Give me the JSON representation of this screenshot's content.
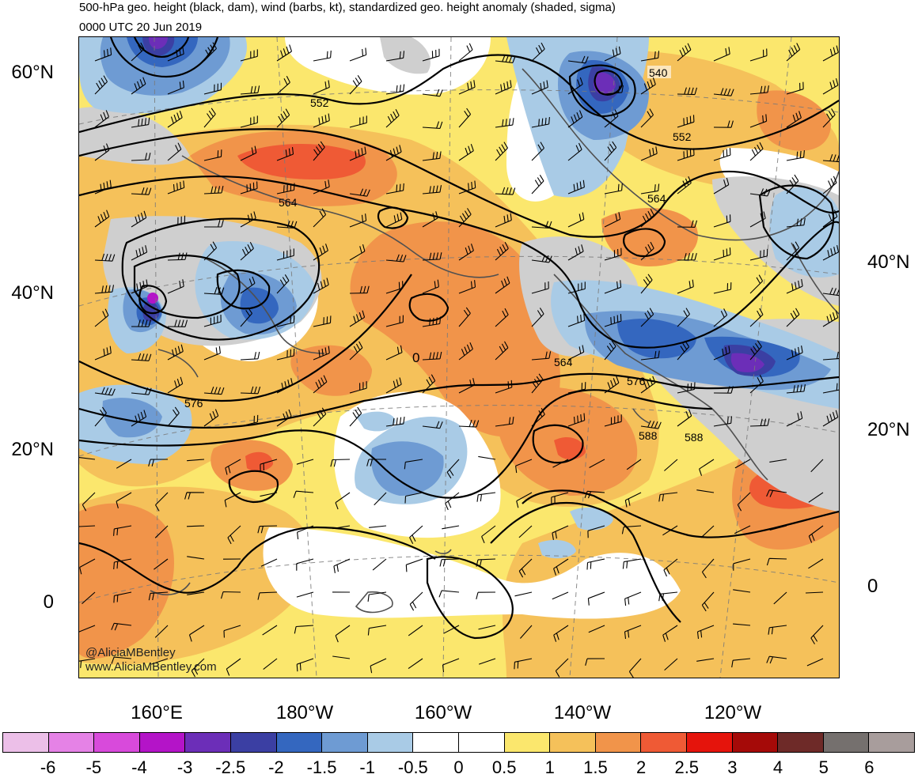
{
  "title": "500-hPa geo. height (black, dam), wind (barbs, kt), standardized geo. height anomaly (shaded, sigma)",
  "subtitle": "0000 UTC 20 Jun 2019",
  "credits": [
    "@AliciaMBentley",
    "www.AliciaMBentley.com"
  ],
  "lat_labels_left": [
    "60°N",
    "40°N",
    "20°N",
    "0"
  ],
  "lat_labels_right": [
    "40°N",
    "20°N",
    "0"
  ],
  "lon_labels": [
    "160°E",
    "180°W",
    "160°W",
    "140°W",
    "120°W"
  ],
  "contour_labels": [
    "540",
    "552",
    "552",
    "564",
    "564",
    "564",
    "576",
    "576",
    "588",
    "588",
    "0"
  ],
  "colorbar": {
    "labels": [
      "-6",
      "-5",
      "-4",
      "-3",
      "-2.5",
      "-2",
      "-1.5",
      "-1",
      "-0.5",
      "0",
      "0.5",
      "1",
      "1.5",
      "2",
      "2.5",
      "3",
      "4",
      "5",
      "6"
    ],
    "colors": [
      "#ecbfe8",
      "#e582e6",
      "#d84adb",
      "#b414c8",
      "#6c2eb8",
      "#3b3fa3",
      "#3467bf",
      "#6e9bd3",
      "#a9cbe6",
      "#ffffff",
      "#ffffff",
      "#fbe76d",
      "#f5c15a",
      "#f1944a",
      "#ef5a35",
      "#e5140c",
      "#a50a08",
      "#6e2a28",
      "#75706e",
      "#a89d9c"
    ]
  },
  "map_colors": {
    "ocean_white": "#ffffff",
    "contour": "#000000",
    "coast": "#505050"
  }
}
